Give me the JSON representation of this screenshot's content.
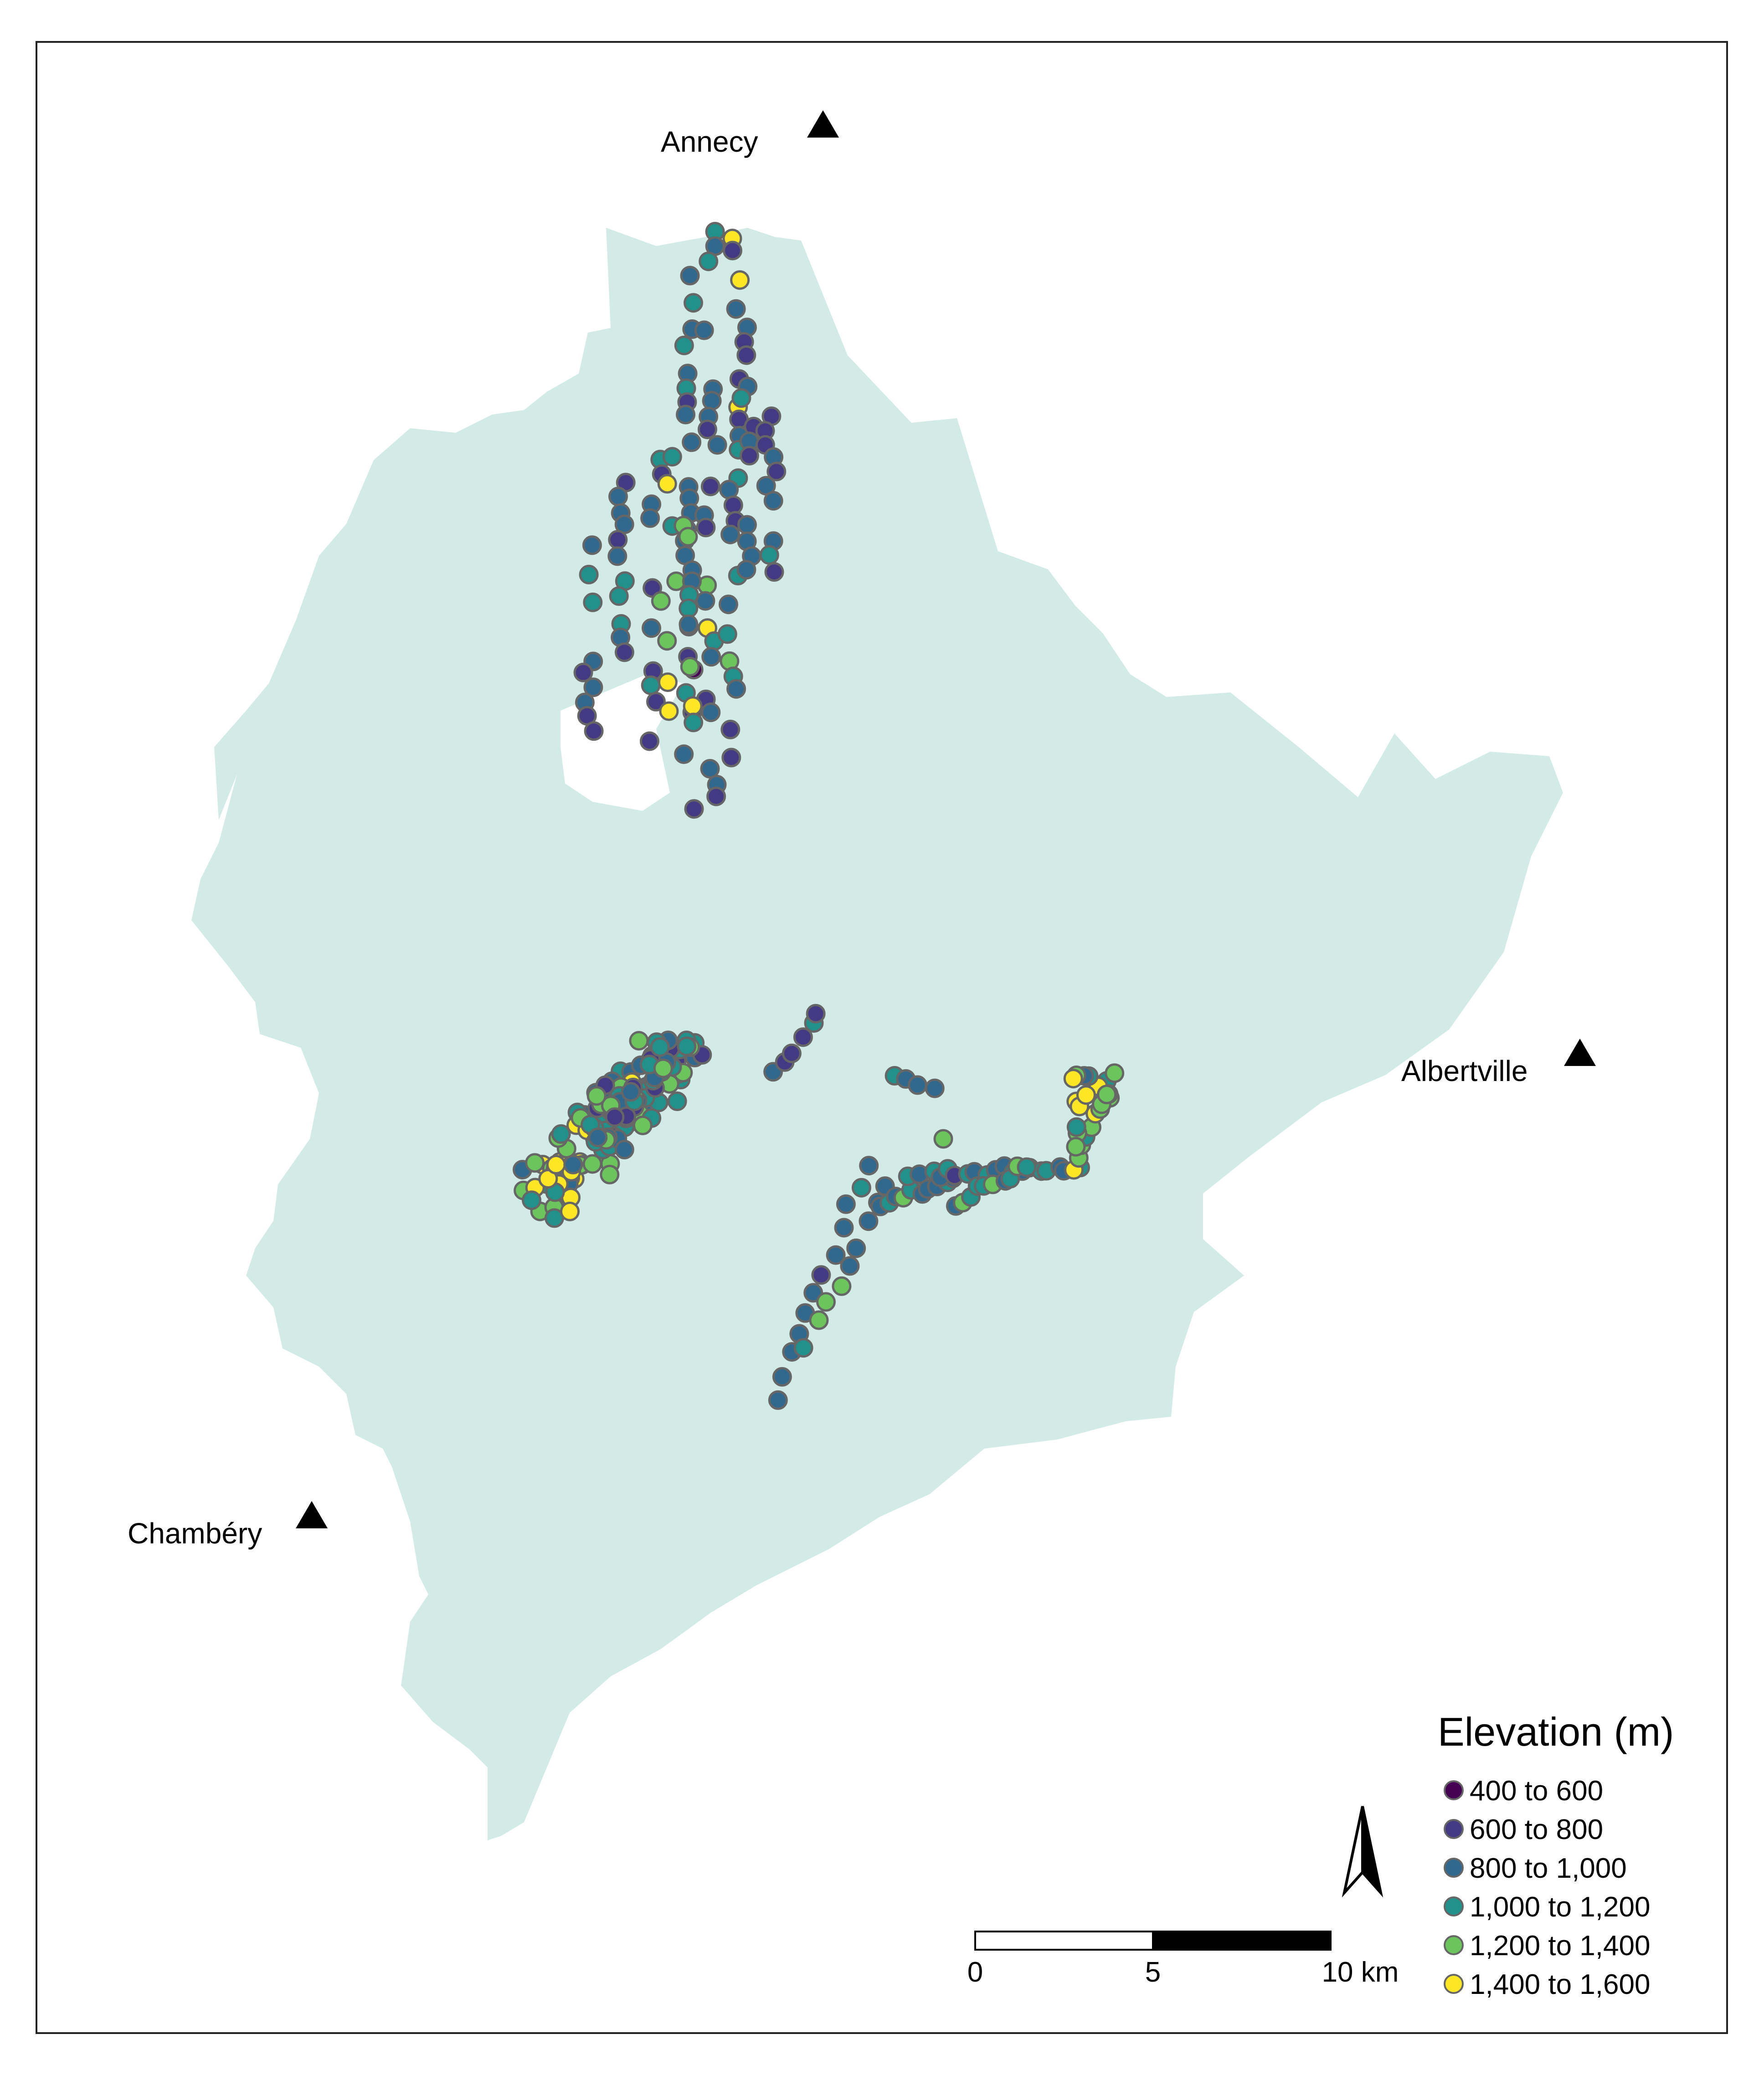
{
  "map": {
    "region_fill": "#d3ebe7",
    "point_stroke": "#666666"
  },
  "cities": [
    {
      "name": "Annecy",
      "marker": "triangle-icon"
    },
    {
      "name": "Albertville",
      "marker": "triangle-icon"
    },
    {
      "name": "Chambéry",
      "marker": "triangle-icon"
    }
  ],
  "legend": {
    "title": "Elevation (m)",
    "classes": [
      {
        "label": "400 to 600",
        "color": "#440154"
      },
      {
        "label": "600 to 800",
        "color": "#443a83"
      },
      {
        "label": "800 to 1,000",
        "color": "#31688e"
      },
      {
        "label": "1,000 to 1,200",
        "color": "#21918c"
      },
      {
        "label": "1,200 to 1,400",
        "color": "#6cc45c"
      },
      {
        "label": "1,400 to 1,600",
        "color": "#fde725"
      }
    ]
  },
  "scale_bar": {
    "ticks": [
      "0",
      "5",
      "10 km"
    ]
  },
  "north_arrow": {
    "icon": "north-arrow-icon"
  }
}
